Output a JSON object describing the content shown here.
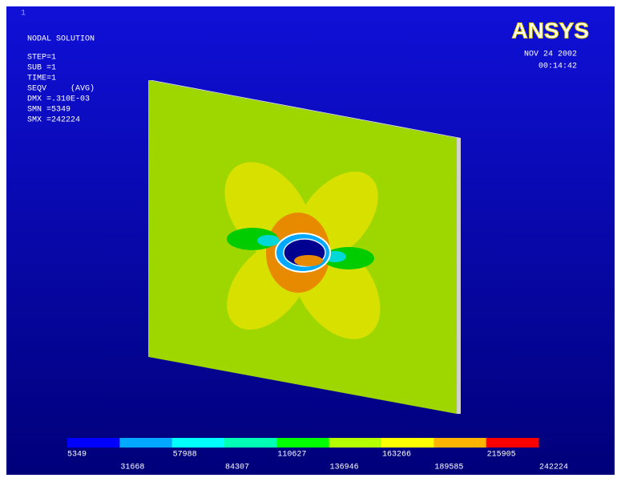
{
  "window_number": "1",
  "info": [
    "NODAL SOLUTION",
    "STEP=1",
    "SUB =1",
    "TIME=1",
    "SEQV     (AVG)",
    "DMX =.310E-03",
    "SMN =5349",
    "SMX =242224"
  ],
  "logo": "ANSYS",
  "date": "NOV 24 2002",
  "time": "00:14:42",
  "legend": {
    "colors": [
      "#0000ff",
      "#00a8ff",
      "#00ffff",
      "#00ffb4",
      "#00ff00",
      "#b4ff00",
      "#ffff00",
      "#ffb400",
      "#ff0000"
    ],
    "labels": [
      5349,
      31668,
      57988,
      84307,
      110627,
      136946,
      163266,
      189585,
      215905,
      242224
    ]
  }
}
